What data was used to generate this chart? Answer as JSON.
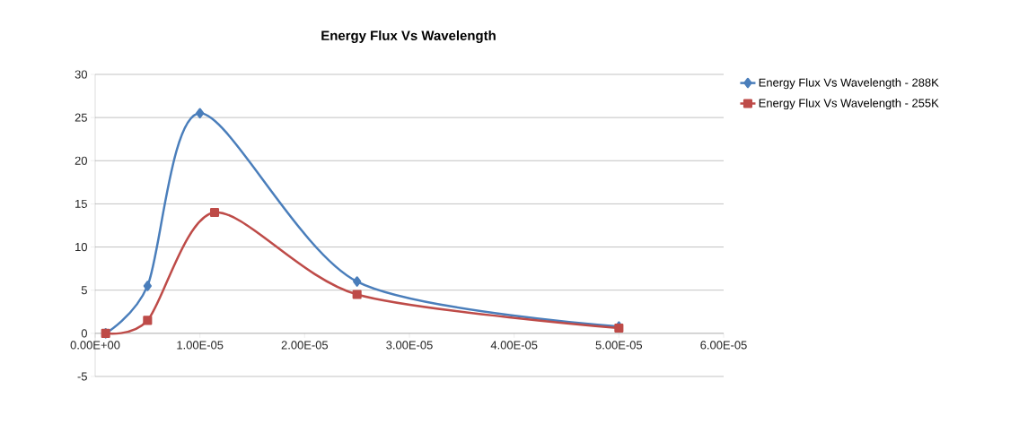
{
  "chart_data": {
    "type": "line",
    "title": "Energy Flux Vs Wavelength",
    "series": [
      {
        "name": "Energy Flux Vs Wavelength - 288K",
        "color": "#4a7ebb",
        "marker": "diamond",
        "x": [
          1e-06,
          5e-06,
          1e-05,
          2.5e-05,
          5e-05
        ],
        "values": [
          0,
          5.5,
          25.5,
          6,
          0.8
        ]
      },
      {
        "name": "Energy Flux Vs Wavelength - 255K",
        "color": "#be4b48",
        "marker": "square",
        "x": [
          1e-06,
          5e-06,
          1.14e-05,
          2.5e-05,
          5e-05
        ],
        "values": [
          0,
          1.5,
          14,
          4.5,
          0.6
        ]
      }
    ],
    "xlim": [
      0,
      6e-05
    ],
    "xticks": [
      {
        "value": 0,
        "label": "0.00E+00"
      },
      {
        "value": 1e-05,
        "label": "1.00E-05"
      },
      {
        "value": 2e-05,
        "label": "2.00E-05"
      },
      {
        "value": 3e-05,
        "label": "3.00E-05"
      },
      {
        "value": 4e-05,
        "label": "4.00E-05"
      },
      {
        "value": 5e-05,
        "label": "5.00E-05"
      },
      {
        "value": 6e-05,
        "label": "6.00E-05"
      }
    ],
    "ylim": [
      -5,
      30
    ],
    "yticks": [
      -5,
      0,
      5,
      10,
      15,
      20,
      25,
      30
    ],
    "grid": "y",
    "legend": "top right"
  }
}
